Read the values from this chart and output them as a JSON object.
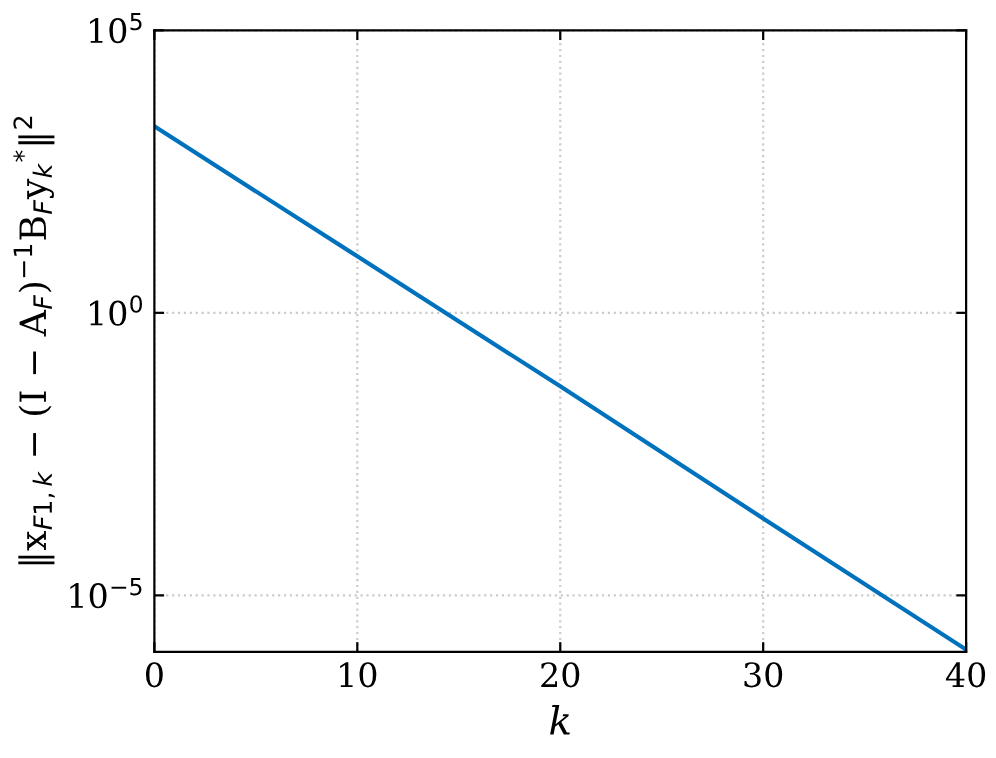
{
  "chart_data": {
    "type": "line",
    "xlabel": "k",
    "ylabel": "‖x$_{F1,k}$ − (I − A$_{F}$)$^{−1}$B$_{F}$y$_{k}$$^{*}$‖$^{2}$",
    "x": [
      0,
      10,
      20,
      30,
      40
    ],
    "series": [
      {
        "color": "#0072bd",
        "values": [
          2000,
          10,
          0.05,
          0.00023,
          1.1e-06
        ]
      }
    ],
    "log": "y",
    "xlim": [
      0,
      40
    ],
    "xticks": [
      0,
      10,
      20,
      30,
      40
    ],
    "ylim": [
      1e-06,
      100000
    ],
    "yticks": [
      {
        "value": 1e-05,
        "label": "10$^{−5}$"
      },
      {
        "value": 1,
        "label": "10$^{0}$"
      },
      {
        "value": 100000,
        "label": "10$^{5}$"
      }
    ],
    "grid": true,
    "line_style": "solid",
    "marker": "none"
  }
}
